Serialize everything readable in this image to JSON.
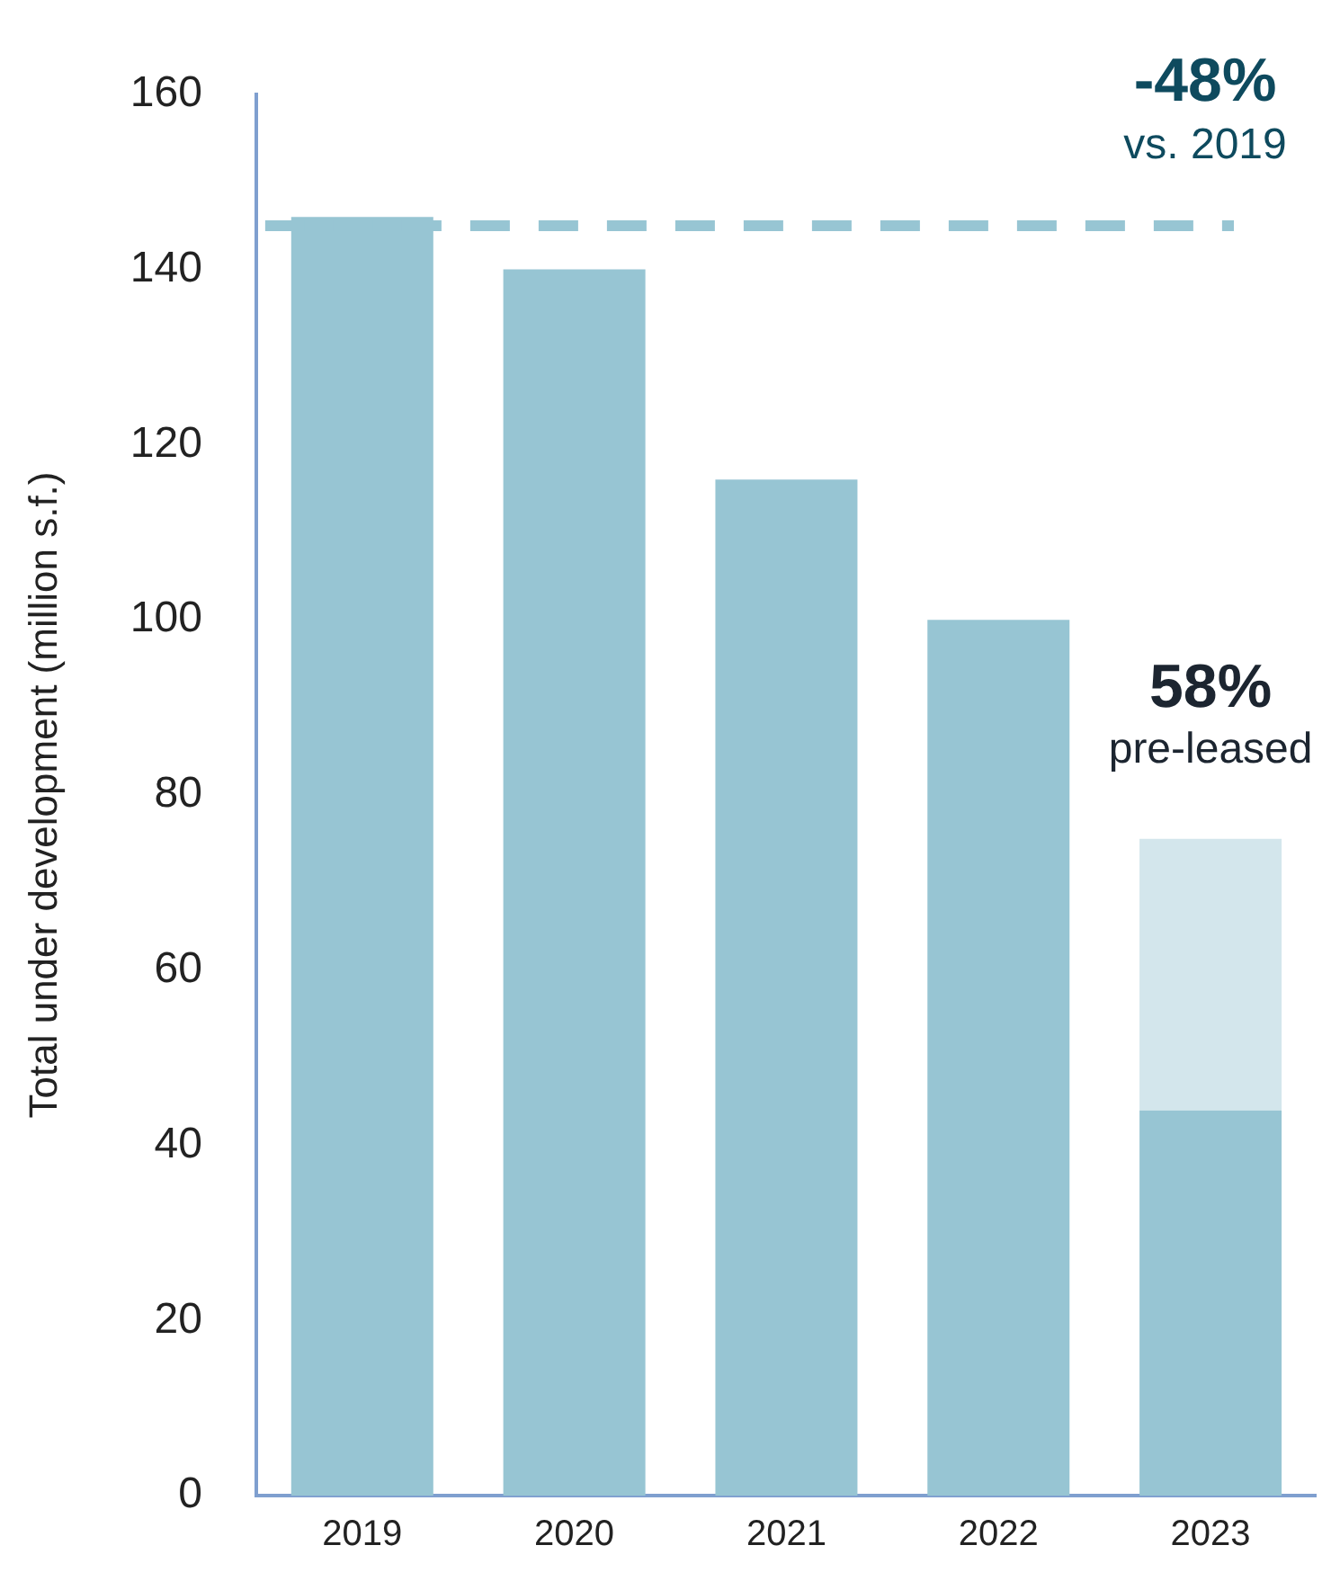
{
  "chart_data": {
    "type": "bar",
    "ylabel": "Total under development (million s.f.)",
    "categories": [
      "2019",
      "2020",
      "2021",
      "2022",
      "2023"
    ],
    "stacked": true,
    "series": [
      {
        "color": "#97c5d3",
        "values": [
          146,
          140,
          116,
          100,
          44
        ]
      },
      {
        "color": "#d3e6ec",
        "values": [
          null,
          null,
          null,
          null,
          31
        ]
      }
    ],
    "ylim": [
      0,
      160
    ],
    "yticks": [
      0,
      20,
      40,
      60,
      80,
      100,
      120,
      140,
      160
    ],
    "grid": false,
    "legend": false,
    "ref_lines": [
      {
        "axis": "y",
        "value": 145,
        "color": "#97c5d3",
        "line_style": "dashed"
      }
    ],
    "annotations": [
      "-48%",
      "vs. 2019",
      "58%",
      "pre-leased"
    ]
  }
}
